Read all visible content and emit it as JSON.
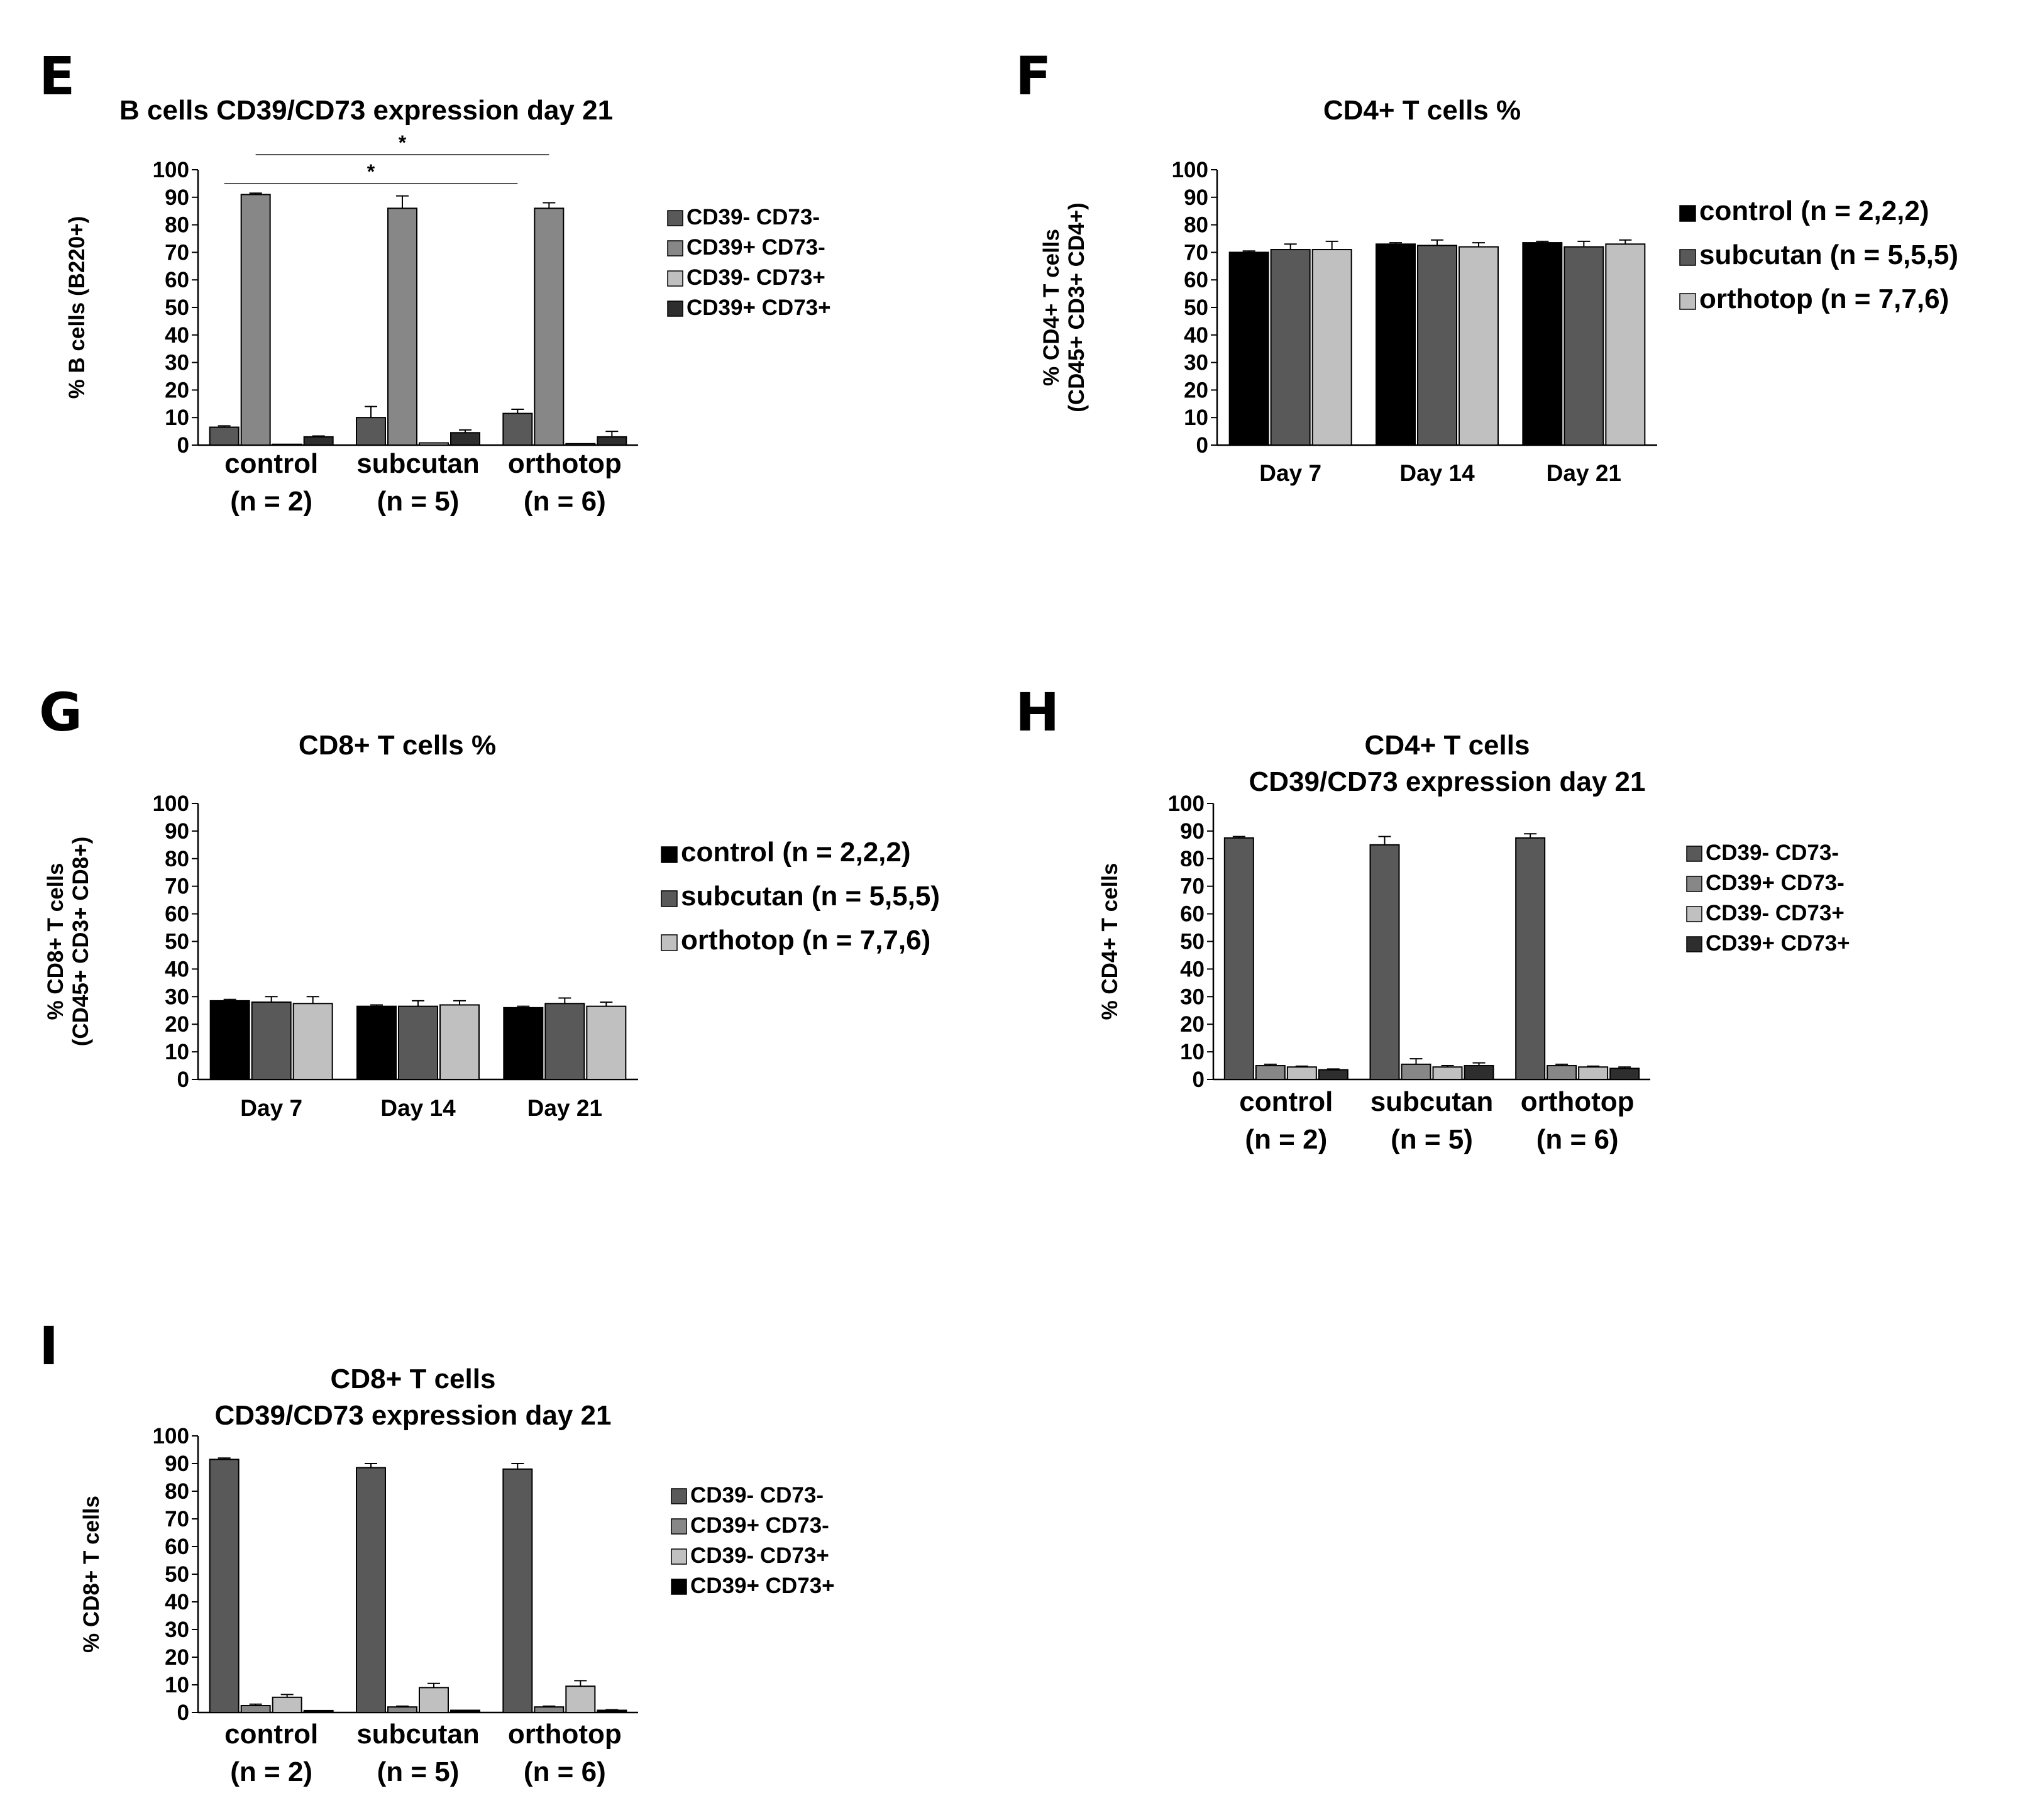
{
  "colors": {
    "black": "#000000",
    "dark": "#595959",
    "mid": "#878787",
    "light": "#c0c0c0",
    "verydark": "#2e2e2e"
  },
  "chart_data": [
    {
      "id": "E",
      "panel_label": "E",
      "type": "bar",
      "title": [
        "B cells CD39/CD73 expression day 21"
      ],
      "ylabel": [
        "% B cells (B220+)"
      ],
      "ylim": [
        0,
        100
      ],
      "yticks": [
        0,
        10,
        20,
        30,
        40,
        50,
        60,
        70,
        80,
        90,
        100
      ],
      "categories": [
        [
          "control",
          "(n = 2)"
        ],
        [
          "subcutan",
          "(n = 5)"
        ],
        [
          "orthotop",
          "(n = 6)"
        ]
      ],
      "series": [
        {
          "name": "CD39- CD73-",
          "color": "#595959",
          "values": [
            6.5,
            10,
            11.5
          ],
          "errors": [
            0.5,
            4,
            1.5
          ]
        },
        {
          "name": "CD39+ CD73-",
          "color": "#878787",
          "values": [
            91,
            86,
            86
          ],
          "errors": [
            0.5,
            4.5,
            2
          ]
        },
        {
          "name": "CD39- CD73+",
          "color": "#c0c0c0",
          "values": [
            0.3,
            0.8,
            0.5
          ],
          "errors": [
            0,
            0,
            0
          ]
        },
        {
          "name": "CD39+ CD73+",
          "color": "#2e2e2e",
          "values": [
            3,
            4.5,
            3
          ],
          "errors": [
            0.3,
            1,
            2
          ]
        }
      ],
      "significance": [
        {
          "from": 0,
          "to": 2,
          "label": "*",
          "level": 1
        },
        {
          "from": 0,
          "to": 2,
          "label": "*",
          "level": 2
        }
      ]
    },
    {
      "id": "F",
      "panel_label": "F",
      "type": "bar",
      "title": [
        "CD4+ T cells %"
      ],
      "ylabel": [
        "% CD4+ T cells",
        "(CD45+ CD3+ CD4+)"
      ],
      "ylim": [
        0,
        100
      ],
      "yticks": [
        0,
        10,
        20,
        30,
        40,
        50,
        60,
        70,
        80,
        90,
        100
      ],
      "categories": [
        [
          "Day 7"
        ],
        [
          "Day 14"
        ],
        [
          "Day 21"
        ]
      ],
      "series": [
        {
          "name": "control (n = 2,2,2)",
          "color": "#000000",
          "values": [
            70,
            73,
            73.5
          ],
          "errors": [
            0.5,
            0.5,
            0.5
          ]
        },
        {
          "name": "subcutan (n = 5,5,5)",
          "color": "#595959",
          "values": [
            71,
            72.5,
            72
          ],
          "errors": [
            2,
            2,
            2
          ]
        },
        {
          "name": "orthotop (n = 7,7,6)",
          "color": "#c0c0c0",
          "values": [
            71,
            72,
            73
          ],
          "errors": [
            3,
            1.5,
            1.5
          ]
        }
      ]
    },
    {
      "id": "G",
      "panel_label": "G",
      "type": "bar",
      "title": [
        "CD8+ T cells %"
      ],
      "ylabel": [
        "% CD8+ T cells",
        "(CD45+ CD3+ CD8+)"
      ],
      "ylim": [
        0,
        100
      ],
      "yticks": [
        0,
        10,
        20,
        30,
        40,
        50,
        60,
        70,
        80,
        90,
        100
      ],
      "categories": [
        [
          "Day 7"
        ],
        [
          "Day 14"
        ],
        [
          "Day 21"
        ]
      ],
      "series": [
        {
          "name": "control (n = 2,2,2)",
          "color": "#000000",
          "values": [
            28.5,
            26.5,
            26
          ],
          "errors": [
            0.5,
            0.5,
            0.5
          ]
        },
        {
          "name": "subcutan (n = 5,5,5)",
          "color": "#595959",
          "values": [
            28,
            26.5,
            27.5
          ],
          "errors": [
            2,
            2,
            2
          ]
        },
        {
          "name": "orthotop (n = 7,7,6)",
          "color": "#c0c0c0",
          "values": [
            27.5,
            27,
            26.5
          ],
          "errors": [
            2.5,
            1.5,
            1.5
          ]
        }
      ]
    },
    {
      "id": "H",
      "panel_label": "H",
      "type": "bar",
      "title": [
        "CD4+ T cells",
        "CD39/CD73 expression day 21"
      ],
      "ylabel": [
        "% CD4+ T cells"
      ],
      "ylim": [
        0,
        100
      ],
      "yticks": [
        0,
        10,
        20,
        30,
        40,
        50,
        60,
        70,
        80,
        90,
        100
      ],
      "categories": [
        [
          "control",
          "(n = 2)"
        ],
        [
          "subcutan",
          "(n = 5)"
        ],
        [
          "orthotop",
          "(n = 6)"
        ]
      ],
      "series": [
        {
          "name": "CD39- CD73-",
          "color": "#595959",
          "values": [
            87.5,
            85,
            87.5
          ],
          "errors": [
            0.5,
            3,
            1.5
          ]
        },
        {
          "name": "CD39+ CD73-",
          "color": "#878787",
          "values": [
            5,
            5.5,
            5
          ],
          "errors": [
            0.5,
            2,
            0.5
          ]
        },
        {
          "name": "CD39- CD73+",
          "color": "#c0c0c0",
          "values": [
            4.5,
            4.5,
            4.5
          ],
          "errors": [
            0.3,
            0.5,
            0.3
          ]
        },
        {
          "name": "CD39+ CD73+",
          "color": "#2e2e2e",
          "values": [
            3.5,
            5,
            4
          ],
          "errors": [
            0.3,
            1,
            0.5
          ]
        }
      ]
    },
    {
      "id": "I",
      "panel_label": "I",
      "type": "bar",
      "title": [
        "CD8+ T cells",
        "CD39/CD73 expression day 21"
      ],
      "ylabel": [
        "% CD8+ T cells"
      ],
      "ylim": [
        0,
        100
      ],
      "yticks": [
        0,
        10,
        20,
        30,
        40,
        50,
        60,
        70,
        80,
        90,
        100
      ],
      "categories": [
        [
          "control",
          "(n = 2)"
        ],
        [
          "subcutan",
          "(n = 5)"
        ],
        [
          "orthotop",
          "(n = 6)"
        ]
      ],
      "series": [
        {
          "name": "CD39- CD73-",
          "color": "#595959",
          "values": [
            91.5,
            88.5,
            88
          ],
          "errors": [
            0.5,
            1.5,
            2
          ]
        },
        {
          "name": "CD39+ CD73-",
          "color": "#878787",
          "values": [
            2.5,
            2,
            2
          ],
          "errors": [
            0.5,
            0.3,
            0.3
          ]
        },
        {
          "name": "CD39- CD73+",
          "color": "#c0c0c0",
          "values": [
            5.5,
            9,
            9.5
          ],
          "errors": [
            1,
            1.5,
            2
          ]
        },
        {
          "name": "CD39+ CD73+",
          "color": "#000000",
          "values": [
            0.7,
            0.8,
            0.8
          ],
          "errors": [
            0,
            0,
            0.2
          ]
        }
      ]
    }
  ]
}
